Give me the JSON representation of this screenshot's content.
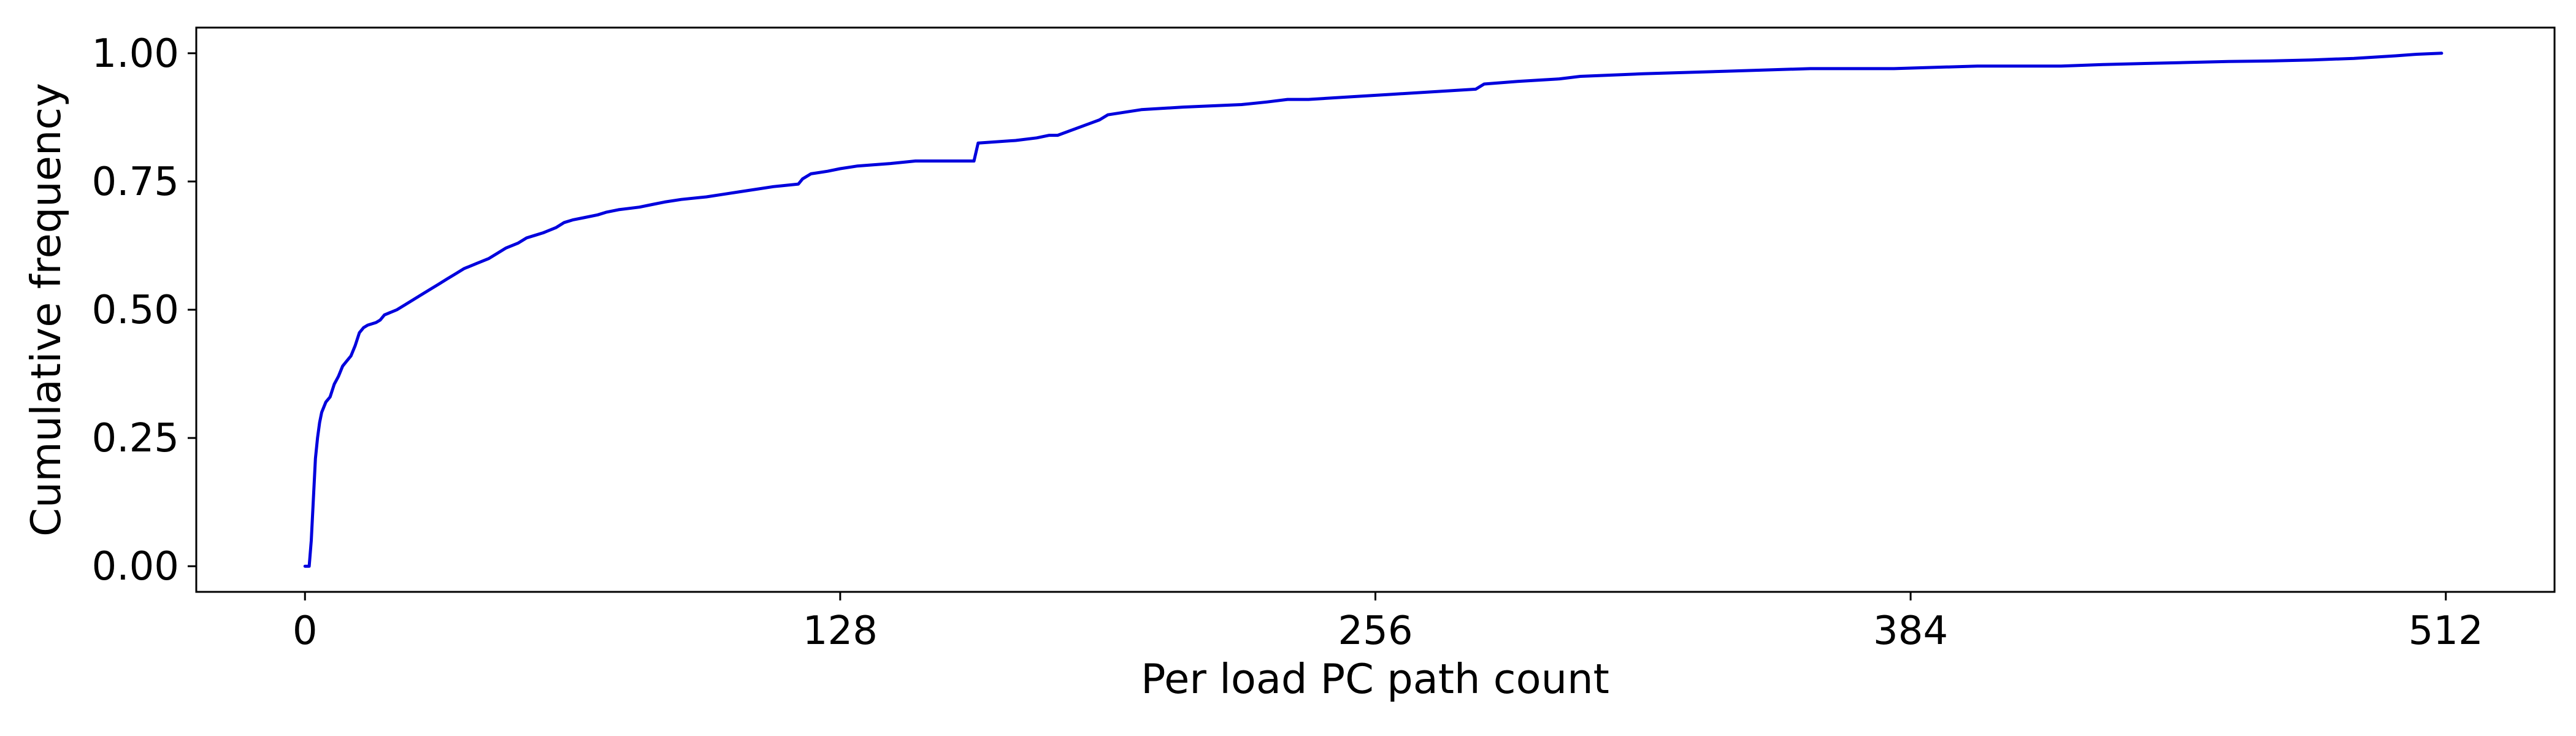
{
  "chart_data": {
    "type": "line",
    "title": "",
    "xlabel": "Per load PC path count",
    "ylabel": "Cumulative frequency",
    "xlim": [
      -26,
      538
    ],
    "ylim": [
      -0.05,
      1.05
    ],
    "xticks": [
      0,
      128,
      256,
      384,
      512
    ],
    "xtick_labels": [
      "0",
      "128",
      "256",
      "384",
      "512"
    ],
    "yticks": [
      0.0,
      0.25,
      0.5,
      0.75,
      1.0
    ],
    "ytick_labels": [
      "0.00",
      "0.25",
      "0.50",
      "0.75",
      "1.00"
    ],
    "grid": false,
    "legend": "none",
    "series": [
      {
        "color": "#0000dd",
        "x": [
          0,
          1,
          1.5,
          2,
          2.5,
          3,
          3.5,
          4,
          5,
          6,
          7,
          8,
          9,
          10,
          11,
          12,
          13,
          14,
          15,
          17,
          18,
          19,
          22,
          24,
          26,
          28,
          30,
          32,
          34,
          36,
          38,
          41,
          44,
          46,
          48,
          51,
          53,
          55,
          57,
          60,
          62,
          64,
          67,
          70,
          72,
          75,
          80,
          83,
          86,
          90,
          96,
          100,
          104,
          108,
          112,
          118,
          119,
          121,
          125,
          128,
          132,
          140,
          146,
          150,
          160,
          161,
          170,
          175,
          178,
          180,
          190,
          192,
          200,
          210,
          224,
          230,
          235,
          240,
          250,
          260,
          280,
          282,
          290,
          300,
          305,
          320,
          340,
          360,
          370,
          380,
          400,
          420,
          430,
          440,
          450,
          460,
          470,
          480,
          490,
          500,
          505,
          511
        ],
        "y": [
          0.0,
          0.0,
          0.05,
          0.13,
          0.21,
          0.25,
          0.28,
          0.3,
          0.32,
          0.33,
          0.355,
          0.37,
          0.39,
          0.4,
          0.41,
          0.43,
          0.455,
          0.465,
          0.47,
          0.475,
          0.48,
          0.49,
          0.5,
          0.51,
          0.52,
          0.53,
          0.54,
          0.55,
          0.56,
          0.57,
          0.58,
          0.59,
          0.6,
          0.61,
          0.62,
          0.63,
          0.64,
          0.645,
          0.65,
          0.66,
          0.67,
          0.675,
          0.68,
          0.685,
          0.69,
          0.695,
          0.7,
          0.705,
          0.71,
          0.715,
          0.72,
          0.725,
          0.73,
          0.735,
          0.74,
          0.745,
          0.755,
          0.765,
          0.77,
          0.775,
          0.78,
          0.785,
          0.79,
          0.79,
          0.79,
          0.825,
          0.83,
          0.835,
          0.84,
          0.84,
          0.87,
          0.88,
          0.89,
          0.895,
          0.9,
          0.905,
          0.91,
          0.91,
          0.915,
          0.92,
          0.93,
          0.94,
          0.945,
          0.95,
          0.955,
          0.96,
          0.965,
          0.97,
          0.97,
          0.97,
          0.975,
          0.975,
          0.978,
          0.98,
          0.982,
          0.984,
          0.985,
          0.987,
          0.99,
          0.995,
          0.998,
          1.0
        ]
      }
    ]
  }
}
